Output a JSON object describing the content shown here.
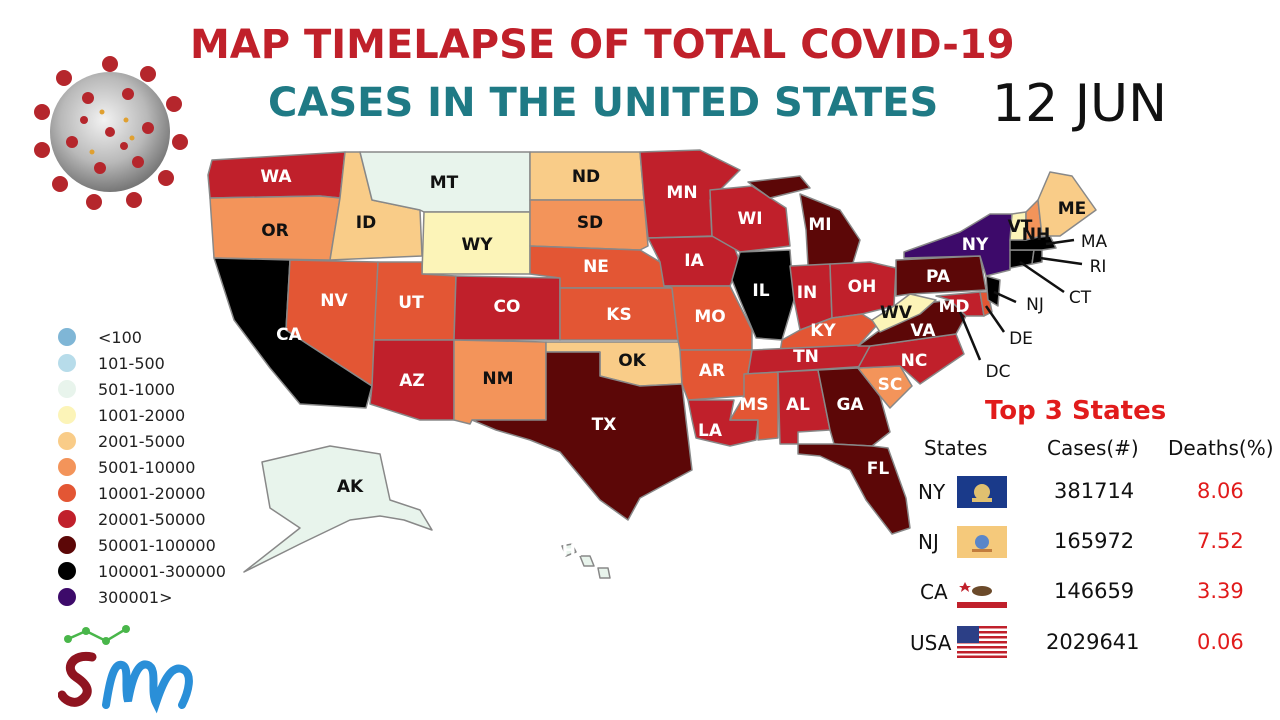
{
  "header": {
    "title_line1": "MAP TIMELAPSE OF TOTAL COVID-19",
    "title_line2": "CASES IN THE UNITED STATES",
    "date": "12 JUN"
  },
  "colors": {
    "lt100": "#7fb6d6",
    "r101_500": "#b7dcea",
    "r501_1000": "#e8f4ec",
    "r1001_2000": "#fcf4b8",
    "r2001_5000": "#f9cc88",
    "r5001_10000": "#f3945a",
    "r10001_20000": "#e35634",
    "r20001_50000": "#c0202b",
    "r50001_100000": "#5c0707",
    "r100001_300000": "#000000",
    "r300001": "#3d0a6a"
  },
  "legend": [
    {
      "label": "<100",
      "color": "#7fb6d6"
    },
    {
      "label": "101-500",
      "color": "#b7dcea"
    },
    {
      "label": "501-1000",
      "color": "#e8f4ec"
    },
    {
      "label": "1001-2000",
      "color": "#fcf4b8"
    },
    {
      "label": "2001-5000",
      "color": "#f9cc88"
    },
    {
      "label": "5001-10000",
      "color": "#f3945a"
    },
    {
      "label": "10001-20000",
      "color": "#e35634"
    },
    {
      "label": "20001-50000",
      "color": "#c0202b"
    },
    {
      "label": "50001-100000",
      "color": "#5c0707"
    },
    {
      "label": "100001-300000",
      "color": "#000000"
    },
    {
      "label": "300001>",
      "color": "#3d0a6a"
    }
  ],
  "states": {
    "WA": "WA",
    "OR": "OR",
    "CA": "CA",
    "ID": "ID",
    "NV": "NV",
    "MT": "MT",
    "WY": "WY",
    "UT": "UT",
    "AZ": "AZ",
    "CO": "CO",
    "NM": "NM",
    "ND": "ND",
    "SD": "SD",
    "NE": "NE",
    "KS": "KS",
    "OK": "OK",
    "TX": "TX",
    "MN": "MN",
    "IA": "IA",
    "MO": "MO",
    "AR": "AR",
    "LA": "LA",
    "WI": "WI",
    "IL": "IL",
    "MI": "MI",
    "IN": "IN",
    "OH": "OH",
    "KY": "KY",
    "TN": "TN",
    "MS": "MS",
    "AL": "AL",
    "GA": "GA",
    "FL": "FL",
    "SC": "SC",
    "NC": "NC",
    "VA": "VA",
    "WV": "WV",
    "PA": "PA",
    "NY": "NY",
    "VT": "VT",
    "NH": "NH",
    "ME": "ME",
    "MA": "MA",
    "RI": "RI",
    "CT": "CT",
    "NJ": "NJ",
    "DE": "DE",
    "MD": "MD",
    "DC": "DC",
    "AK": "AK",
    "HI": "HI"
  },
  "top3": {
    "title": "Top 3 States",
    "col_states": "States",
    "col_cases": "Cases(#)",
    "col_deaths": "Deaths(%)",
    "rows": [
      {
        "state": "NY",
        "cases": "381714",
        "deaths": "8.06"
      },
      {
        "state": "NJ",
        "cases": "165972",
        "deaths": "7.52"
      },
      {
        "state": "CA",
        "cases": "146659",
        "deaths": "3.39"
      },
      {
        "state": "USA",
        "cases": "2029641",
        "deaths": "0.06"
      }
    ]
  }
}
